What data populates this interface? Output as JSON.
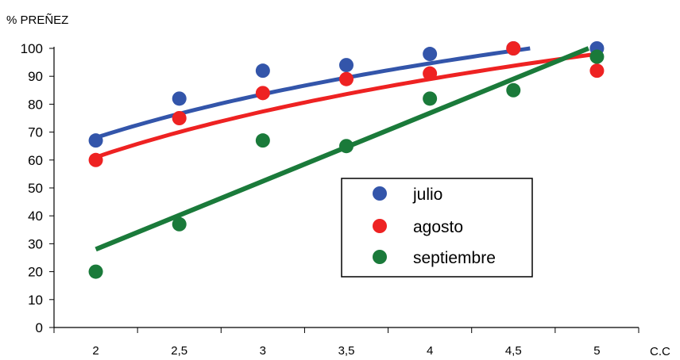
{
  "chart_data": {
    "type": "scatter",
    "ylabel": "% PREÑEZ",
    "xlabel": "C.C",
    "ylim": [
      0,
      100
    ],
    "y_ticks": [
      "0",
      "10",
      "20",
      "30",
      "40",
      "50",
      "60",
      "70",
      "80",
      "90",
      "100"
    ],
    "x_ticks": [
      "2",
      "2,5",
      "3",
      "3,5",
      "4",
      "4,5",
      "5"
    ],
    "x": [
      2,
      2.5,
      3,
      3.5,
      4,
      4.5,
      5
    ],
    "grid": false,
    "legend_position": "center-right",
    "series": [
      {
        "name": "julio",
        "color": "#3355aa",
        "values": [
          67,
          82,
          92,
          94,
          98,
          100,
          100
        ],
        "trendline": "logarithmic",
        "trend_x": [
          2,
          4.6
        ],
        "trend_values": [
          68,
          100
        ]
      },
      {
        "name": "agosto",
        "color": "#ee2222",
        "values": [
          60,
          75,
          84,
          89,
          91,
          100,
          92
        ],
        "trendline": "logarithmic",
        "trend_x": [
          2,
          5
        ],
        "trend_values": [
          61,
          98
        ]
      },
      {
        "name": "septiembre",
        "color": "#1a7a3a",
        "values": [
          20,
          37,
          67,
          65,
          82,
          85,
          97
        ],
        "trendline": "linear",
        "trend_x": [
          2,
          4.95
        ],
        "trend_values": [
          28,
          100
        ]
      }
    ]
  }
}
